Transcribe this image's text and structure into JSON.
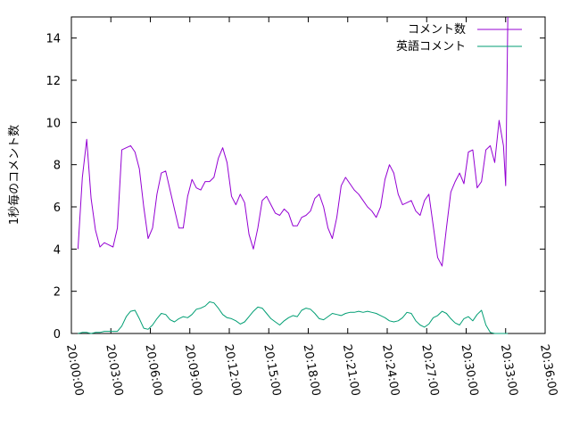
{
  "chart_data": {
    "type": "line",
    "xlabel": "",
    "ylabel": "1秒毎のコメント数",
    "xlim": [
      "20:00:00",
      "20:36:00"
    ],
    "ylim": [
      0,
      15
    ],
    "x_ticks": [
      "20:00:00",
      "20:03:00",
      "20:06:00",
      "20:09:00",
      "20:12:00",
      "20:15:00",
      "20:18:00",
      "20:21:00",
      "20:24:00",
      "20:27:00",
      "20:30:00",
      "20:33:00",
      "20:36:00"
    ],
    "y_ticks": [
      0,
      2,
      4,
      6,
      8,
      10,
      12,
      14
    ],
    "legend_position": "top-right",
    "grid": false,
    "series": [
      {
        "name": "コメント数",
        "color": "#9400d3",
        "x": [
          "20:00:30",
          "20:00:50",
          "20:01:10",
          "20:01:30",
          "20:01:50",
          "20:02:10",
          "20:02:30",
          "20:02:50",
          "20:03:10",
          "20:03:30",
          "20:03:50",
          "20:04:10",
          "20:04:30",
          "20:04:50",
          "20:05:10",
          "20:05:30",
          "20:05:50",
          "20:06:10",
          "20:06:30",
          "20:06:50",
          "20:07:10",
          "20:07:30",
          "20:07:50",
          "20:08:10",
          "20:08:30",
          "20:08:50",
          "20:09:10",
          "20:09:30",
          "20:09:50",
          "20:10:10",
          "20:10:30",
          "20:10:50",
          "20:11:10",
          "20:11:30",
          "20:11:50",
          "20:12:10",
          "20:12:30",
          "20:12:50",
          "20:13:10",
          "20:13:30",
          "20:13:50",
          "20:14:10",
          "20:14:30",
          "20:14:50",
          "20:15:10",
          "20:15:30",
          "20:15:50",
          "20:16:10",
          "20:16:30",
          "20:16:50",
          "20:17:10",
          "20:17:30",
          "20:17:50",
          "20:18:10",
          "20:18:30",
          "20:18:50",
          "20:19:10",
          "20:19:30",
          "20:19:50",
          "20:20:10",
          "20:20:30",
          "20:20:50",
          "20:21:10",
          "20:21:30",
          "20:21:50",
          "20:22:10",
          "20:22:30",
          "20:22:50",
          "20:23:10",
          "20:23:30",
          "20:23:50",
          "20:24:10",
          "20:24:30",
          "20:24:50",
          "20:25:10",
          "20:25:30",
          "20:25:50",
          "20:26:10",
          "20:26:30",
          "20:26:50",
          "20:27:10",
          "20:27:30",
          "20:27:50",
          "20:28:10",
          "20:28:30",
          "20:28:50",
          "20:29:10",
          "20:29:30",
          "20:29:50",
          "20:30:10",
          "20:30:30",
          "20:30:50",
          "20:31:10",
          "20:31:30",
          "20:31:50",
          "20:32:10",
          "20:32:30",
          "20:32:50",
          "20:33:00",
          "20:33:10"
        ],
        "y": [
          4.0,
          7.4,
          9.2,
          6.4,
          4.9,
          4.1,
          4.3,
          4.2,
          4.1,
          5.0,
          8.7,
          8.8,
          8.9,
          8.6,
          7.8,
          6.0,
          4.5,
          5.0,
          6.6,
          7.6,
          7.7,
          6.8,
          5.9,
          5.0,
          5.0,
          6.5,
          7.3,
          6.9,
          6.8,
          7.2,
          7.2,
          7.4,
          8.3,
          8.8,
          8.1,
          6.5,
          6.1,
          6.6,
          6.2,
          4.7,
          4.0,
          5.0,
          6.3,
          6.5,
          6.1,
          5.7,
          5.6,
          5.9,
          5.7,
          5.1,
          5.1,
          5.5,
          5.6,
          5.8,
          6.4,
          6.6,
          6.0,
          5.0,
          4.5,
          5.5,
          7.0,
          7.4,
          7.1,
          6.8,
          6.6,
          6.3,
          6.0,
          5.8,
          5.5,
          6.0,
          7.3,
          8.0,
          7.6,
          6.6,
          6.1,
          6.2,
          6.3,
          5.8,
          5.6,
          6.3,
          6.6,
          5.1,
          3.6,
          3.2,
          5.0,
          6.7,
          7.2,
          7.6,
          7.1,
          8.6,
          8.7,
          6.9,
          7.2,
          8.7,
          8.9,
          8.1,
          10.1,
          8.9,
          7.0,
          15.0
        ]
      },
      {
        "name": "英語コメント",
        "color": "#009e73",
        "x": [
          "20:00:30",
          "20:00:50",
          "20:01:10",
          "20:01:30",
          "20:01:50",
          "20:02:10",
          "20:02:30",
          "20:02:50",
          "20:03:10",
          "20:03:30",
          "20:03:50",
          "20:04:10",
          "20:04:30",
          "20:04:50",
          "20:05:10",
          "20:05:30",
          "20:05:50",
          "20:06:10",
          "20:06:30",
          "20:06:50",
          "20:07:10",
          "20:07:30",
          "20:07:50",
          "20:08:10",
          "20:08:30",
          "20:08:50",
          "20:09:10",
          "20:09:30",
          "20:09:50",
          "20:10:10",
          "20:10:30",
          "20:10:50",
          "20:11:10",
          "20:11:30",
          "20:11:50",
          "20:12:10",
          "20:12:30",
          "20:12:50",
          "20:13:10",
          "20:13:30",
          "20:13:50",
          "20:14:10",
          "20:14:30",
          "20:14:50",
          "20:15:10",
          "20:15:30",
          "20:15:50",
          "20:16:10",
          "20:16:30",
          "20:16:50",
          "20:17:10",
          "20:17:30",
          "20:17:50",
          "20:18:10",
          "20:18:30",
          "20:18:50",
          "20:19:10",
          "20:19:30",
          "20:19:50",
          "20:20:10",
          "20:20:30",
          "20:20:50",
          "20:21:10",
          "20:21:30",
          "20:21:50",
          "20:22:10",
          "20:22:30",
          "20:22:50",
          "20:23:10",
          "20:23:30",
          "20:23:50",
          "20:24:10",
          "20:24:30",
          "20:24:50",
          "20:25:10",
          "20:25:30",
          "20:25:50",
          "20:26:10",
          "20:26:30",
          "20:26:50",
          "20:27:10",
          "20:27:30",
          "20:27:50",
          "20:28:10",
          "20:28:30",
          "20:28:50",
          "20:29:10",
          "20:29:30",
          "20:29:50",
          "20:30:10",
          "20:30:30",
          "20:30:50",
          "20:31:10",
          "20:31:30",
          "20:31:50",
          "20:32:10",
          "20:32:30",
          "20:32:50",
          "20:33:00",
          "20:33:10"
        ],
        "y": [
          0.0,
          0.05,
          0.05,
          0.0,
          0.05,
          0.05,
          0.1,
          0.1,
          0.1,
          0.1,
          0.35,
          0.8,
          1.05,
          1.1,
          0.7,
          0.25,
          0.2,
          0.4,
          0.7,
          0.95,
          0.9,
          0.65,
          0.55,
          0.7,
          0.8,
          0.75,
          0.9,
          1.15,
          1.2,
          1.3,
          1.5,
          1.45,
          1.2,
          0.9,
          0.75,
          0.7,
          0.6,
          0.45,
          0.55,
          0.8,
          1.05,
          1.25,
          1.2,
          0.95,
          0.7,
          0.55,
          0.4,
          0.6,
          0.75,
          0.85,
          0.8,
          1.1,
          1.2,
          1.15,
          0.95,
          0.7,
          0.65,
          0.8,
          0.95,
          0.9,
          0.85,
          0.95,
          1.0,
          1.0,
          1.05,
          1.0,
          1.05,
          1.0,
          0.95,
          0.85,
          0.75,
          0.6,
          0.55,
          0.6,
          0.75,
          1.0,
          0.95,
          0.6,
          0.4,
          0.3,
          0.45,
          0.75,
          0.85,
          1.05,
          0.95,
          0.7,
          0.5,
          0.4,
          0.7,
          0.8,
          0.6,
          0.9,
          1.1,
          0.4,
          0.05,
          0.0,
          0.0,
          0.0,
          0.0,
          0.0
        ]
      }
    ]
  }
}
